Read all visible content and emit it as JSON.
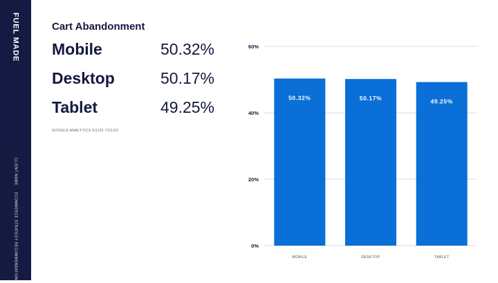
{
  "brand": "FUEL MADE",
  "sidebar": {
    "client_label": "CLIENT NAME",
    "deck_label": "ECOMMERCE STRATEGY RECOMMENDATIONS"
  },
  "title": "Cart Abandonment",
  "stats": [
    {
      "label": "Mobile",
      "value": "50.32%"
    },
    {
      "label": "Desktop",
      "value": "50.17%"
    },
    {
      "label": "Tablet",
      "value": "49.25%"
    }
  ],
  "source": "GOOGLE ANALYTICS 5/1/22-7/31/22",
  "colors": {
    "sidebar": "#151a42",
    "bar": "#0a6fd7",
    "text": "#15193d"
  },
  "chart_data": {
    "type": "bar",
    "categories": [
      "MOBILE",
      "DESKTOP",
      "TABLET"
    ],
    "values": [
      50.32,
      50.17,
      49.25
    ],
    "data_labels": [
      "50.32%",
      "50.17%",
      "49.25%"
    ],
    "y_ticks": [
      0,
      20,
      40,
      60
    ],
    "y_tick_labels": [
      "0%",
      "20%",
      "40%",
      "60%"
    ],
    "ylim": [
      0,
      60
    ],
    "grid": true
  }
}
